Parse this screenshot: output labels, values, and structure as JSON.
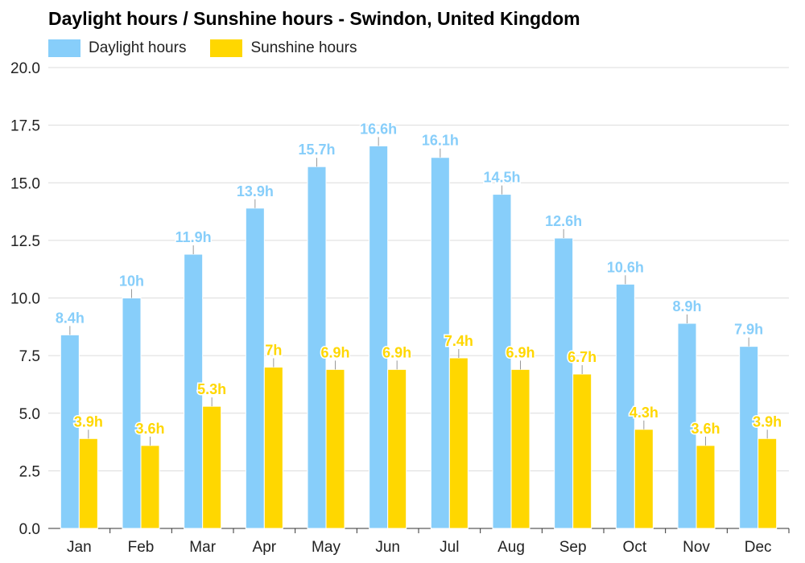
{
  "chart_data": {
    "type": "bar",
    "title": "Daylight hours / Sunshine hours - Swindon, United Kingdom",
    "categories": [
      "Jan",
      "Feb",
      "Mar",
      "Apr",
      "May",
      "Jun",
      "Jul",
      "Aug",
      "Sep",
      "Oct",
      "Nov",
      "Dec"
    ],
    "series": [
      {
        "name": "Daylight hours",
        "color": "#87CEFA",
        "values": [
          8.4,
          10,
          11.9,
          13.9,
          15.7,
          16.6,
          16.1,
          14.5,
          12.6,
          10.6,
          8.9,
          7.9
        ],
        "labels": [
          "8.4h",
          "10h",
          "11.9h",
          "13.9h",
          "15.7h",
          "16.6h",
          "16.1h",
          "14.5h",
          "12.6h",
          "10.6h",
          "8.9h",
          "7.9h"
        ]
      },
      {
        "name": "Sunshine hours",
        "color": "#FFD700",
        "values": [
          3.9,
          3.6,
          5.3,
          7,
          6.9,
          6.9,
          7.4,
          6.9,
          6.7,
          4.3,
          3.6,
          3.9
        ],
        "labels": [
          "3.9h",
          "3.6h",
          "5.3h",
          "7h",
          "6.9h",
          "6.9h",
          "7.4h",
          "6.9h",
          "6.7h",
          "4.3h",
          "3.6h",
          "3.9h"
        ]
      }
    ],
    "xlabel": "",
    "ylabel": "",
    "ylim": [
      0,
      20
    ],
    "yticks": [
      "0.0",
      "2.5",
      "5.0",
      "7.5",
      "10.0",
      "12.5",
      "15.0",
      "17.5",
      "20.0"
    ],
    "grid": true,
    "legend_position": "top-left"
  }
}
